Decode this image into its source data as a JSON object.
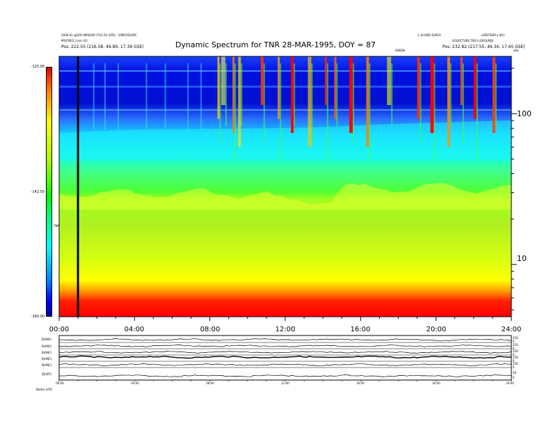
{
  "chart_data": {
    "type": "heatmap",
    "title": "Dynamic Spectrum for TNR 28-MAR-1995, DOY = 87",
    "header_left": [
      "2000-01 @DOS NP40/SP (TGS 50 (SPS) - 5/MOOS)/SPC",
      "MS/FREQ 3 min SO",
      "Pos. 222.55 (216.58, 49.89, 17.39 GSE)"
    ],
    "header_right": [
      "1.16 MED SURCE",
      "LOBITSOM a 801",
      "SOLPICTURE TRU3 (GROUND)",
      "Pos. 232.82 (217.55, 49.34, 17.65 GSE)"
    ],
    "top_axis_label": "GREEN",
    "top_right_label": "kHz",
    "colorbar": {
      "ticks": [
        "-125.00",
        "-142.50",
        "-160.00"
      ],
      "label": "TNR"
    },
    "y_axis": {
      "scale": "log",
      "units": "kHz",
      "ticks": [
        "100",
        "10"
      ],
      "range": [
        4.5,
        240
      ]
    },
    "x_axis": {
      "ticks": [
        "00:00",
        "04:00",
        "08:00",
        "12:00",
        "16:00",
        "20:00",
        "24:00"
      ],
      "range": [
        0,
        24
      ]
    },
    "marker_time": "01:00",
    "bottom_panel": {
      "labels": [
        "B(ANC)",
        "B(ANC)",
        "B(ANC)",
        "B(ANC)",
        "N(ANC)",
        "|B|(NT)"
      ],
      "right_ticks": [
        "250",
        "0",
        "250",
        "0",
        "250",
        "0",
        "250",
        "0",
        "250",
        "0",
        "20",
        "0"
      ],
      "x_ticks": [
        "00:00",
        "04:00",
        "08:00",
        "12:00",
        "16:00",
        "20:00",
        "24:00"
      ],
      "footer": "Nodes  4/50"
    }
  },
  "colors": {
    "red": "#ff0000",
    "yellow": "#ffff00",
    "green": "#00ff00",
    "cyan": "#00ffff",
    "blue": "#0000ff",
    "navy": "#0000a0"
  }
}
